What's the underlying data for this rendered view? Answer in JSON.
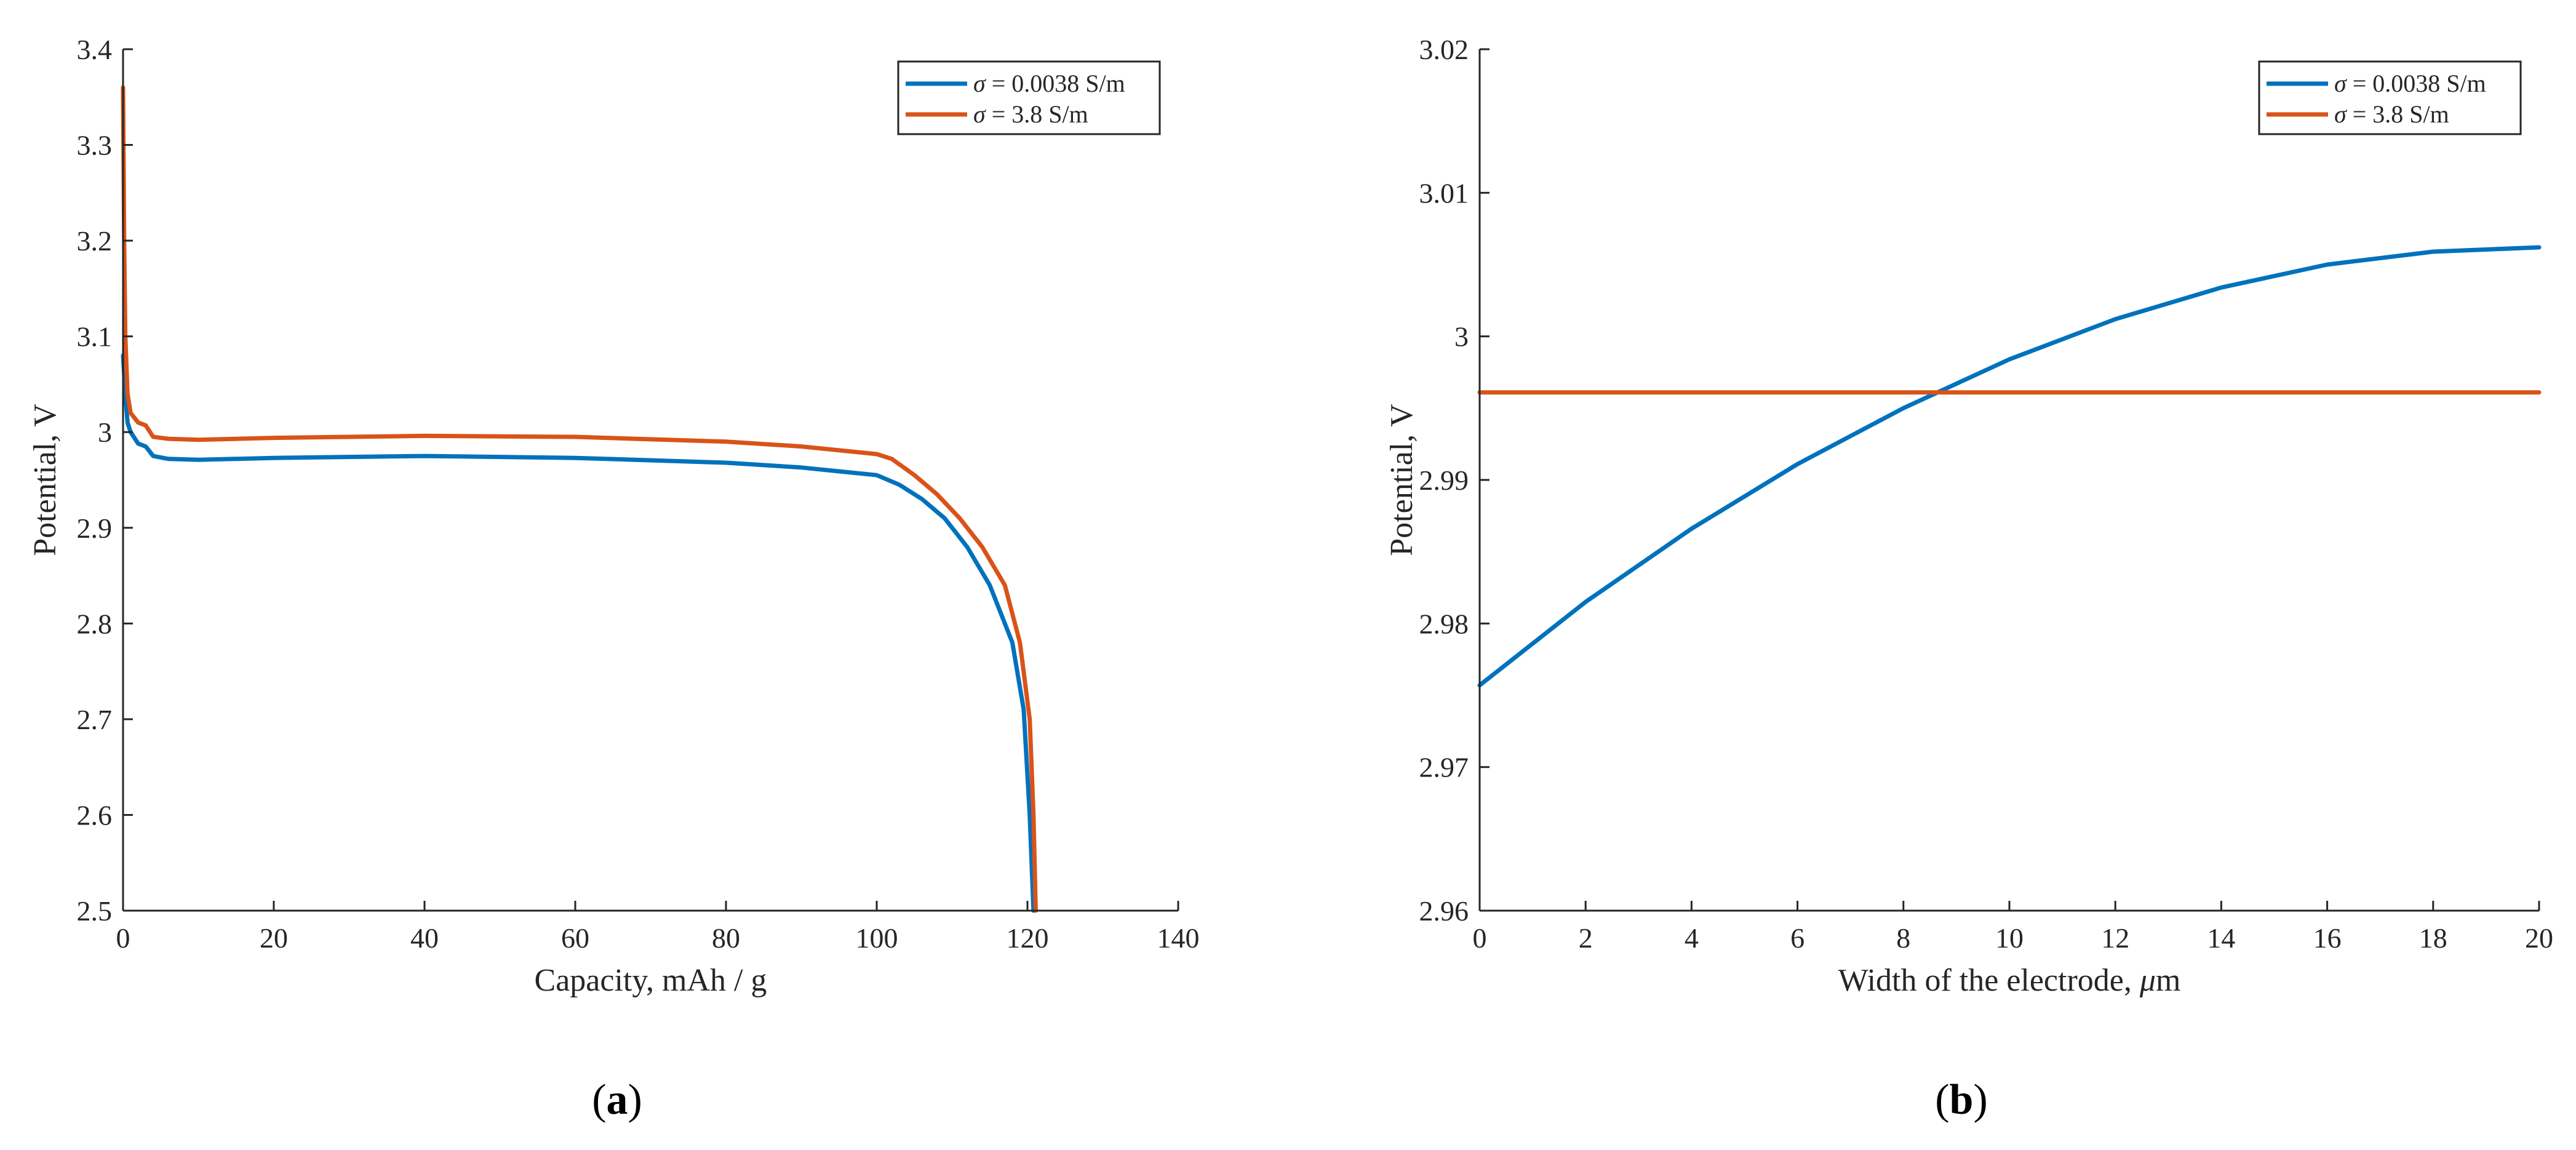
{
  "colors": {
    "blue": "#0072BD",
    "orange": "#D95319",
    "axis": "#262626"
  },
  "chart_data": [
    {
      "type": "line",
      "panel_label": "(a)",
      "panel_label_parts": {
        "open": "(",
        "letter": "a",
        "close": ")"
      },
      "xlabel": "Capacity, mAh / g",
      "ylabel": "Potential, V",
      "xlim": [
        0,
        140
      ],
      "ylim": [
        2.5,
        3.4
      ],
      "xticks": [
        0,
        20,
        40,
        60,
        80,
        100,
        120,
        140
      ],
      "yticks": [
        2.5,
        2.6,
        2.7,
        2.8,
        2.9,
        3.0,
        3.1,
        3.2,
        3.3,
        3.4
      ],
      "xtick_labels": [
        "0",
        "20",
        "40",
        "60",
        "80",
        "100",
        "120",
        "140"
      ],
      "ytick_labels": [
        "2.5",
        "2.6",
        "2.7",
        "2.8",
        "2.9",
        "3",
        "3.1",
        "3.2",
        "3.3",
        "3.4"
      ],
      "legend_position": "top-right",
      "series": [
        {
          "name": "σ = 0.0038 S/m",
          "name_parts": {
            "symbol": "σ",
            "rest": " = 0.0038 S/m"
          },
          "color": "#0072BD",
          "points": [
            [
              0,
              3.08
            ],
            [
              0.3,
              3.04
            ],
            [
              0.6,
              3.01
            ],
            [
              1,
              3.0
            ],
            [
              2,
              2.988
            ],
            [
              3,
              2.985
            ],
            [
              4,
              2.975
            ],
            [
              6,
              2.972
            ],
            [
              10,
              2.971
            ],
            [
              20,
              2.973
            ],
            [
              40,
              2.975
            ],
            [
              60,
              2.973
            ],
            [
              80,
              2.968
            ],
            [
              90,
              2.963
            ],
            [
              100,
              2.955
            ],
            [
              103,
              2.945
            ],
            [
              106,
              2.93
            ],
            [
              109,
              2.91
            ],
            [
              112,
              2.88
            ],
            [
              115,
              2.84
            ],
            [
              118,
              2.78
            ],
            [
              119.5,
              2.71
            ],
            [
              120.3,
              2.6
            ],
            [
              120.8,
              2.5
            ]
          ]
        },
        {
          "name": "σ = 3.8 S/m",
          "name_parts": {
            "symbol": "σ",
            "rest": " = 3.8 S/m"
          },
          "color": "#D95319",
          "points": [
            [
              0,
              3.36
            ],
            [
              0.15,
              3.2
            ],
            [
              0.3,
              3.1
            ],
            [
              0.6,
              3.04
            ],
            [
              1,
              3.02
            ],
            [
              2,
              3.01
            ],
            [
              3,
              3.007
            ],
            [
              4,
              2.995
            ],
            [
              6,
              2.993
            ],
            [
              10,
              2.992
            ],
            [
              20,
              2.994
            ],
            [
              40,
              2.996
            ],
            [
              60,
              2.995
            ],
            [
              80,
              2.99
            ],
            [
              90,
              2.985
            ],
            [
              100,
              2.977
            ],
            [
              102,
              2.972
            ],
            [
              105,
              2.955
            ],
            [
              108,
              2.935
            ],
            [
              111,
              2.91
            ],
            [
              114,
              2.88
            ],
            [
              117,
              2.84
            ],
            [
              119,
              2.78
            ],
            [
              120.3,
              2.7
            ],
            [
              120.8,
              2.6
            ],
            [
              121.1,
              2.5
            ]
          ]
        }
      ]
    },
    {
      "type": "line",
      "panel_label": "(b)",
      "panel_label_parts": {
        "open": "(",
        "letter": "b",
        "close": ")"
      },
      "xlabel": "Width of the electrode, μm",
      "xlabel_parts": {
        "pre": "Width of the electrode, ",
        "mu": "μ",
        "post": "m"
      },
      "ylabel": "Potential, V",
      "xlim": [
        0,
        20
      ],
      "ylim": [
        2.96,
        3.02
      ],
      "xticks": [
        0,
        2,
        4,
        6,
        8,
        10,
        12,
        14,
        16,
        18,
        20
      ],
      "yticks": [
        2.96,
        2.97,
        2.98,
        2.99,
        3.0,
        3.01,
        3.02
      ],
      "xtick_labels": [
        "0",
        "2",
        "4",
        "6",
        "8",
        "10",
        "12",
        "14",
        "16",
        "18",
        "20"
      ],
      "ytick_labels": [
        "2.96",
        "2.97",
        "2.98",
        "2.99",
        "3",
        "3.01",
        "3.02"
      ],
      "legend_position": "top-right",
      "series": [
        {
          "name": "σ = 0.0038 S/m",
          "name_parts": {
            "symbol": "σ",
            "rest": " = 0.0038 S/m"
          },
          "color": "#0072BD",
          "points": [
            [
              0,
              2.9757
            ],
            [
              2,
              2.9815
            ],
            [
              4,
              2.9866
            ],
            [
              6,
              2.9911
            ],
            [
              8,
              2.995
            ],
            [
              10,
              2.9984
            ],
            [
              12,
              3.0012
            ],
            [
              14,
              3.0034
            ],
            [
              16,
              3.005
            ],
            [
              18,
              3.0059
            ],
            [
              20,
              3.0062
            ]
          ]
        },
        {
          "name": "σ = 3.8 S/m",
          "name_parts": {
            "symbol": "σ",
            "rest": " = 3.8 S/m"
          },
          "color": "#D95319",
          "points": [
            [
              0,
              2.9961
            ],
            [
              20,
              2.9961
            ]
          ]
        }
      ]
    }
  ]
}
